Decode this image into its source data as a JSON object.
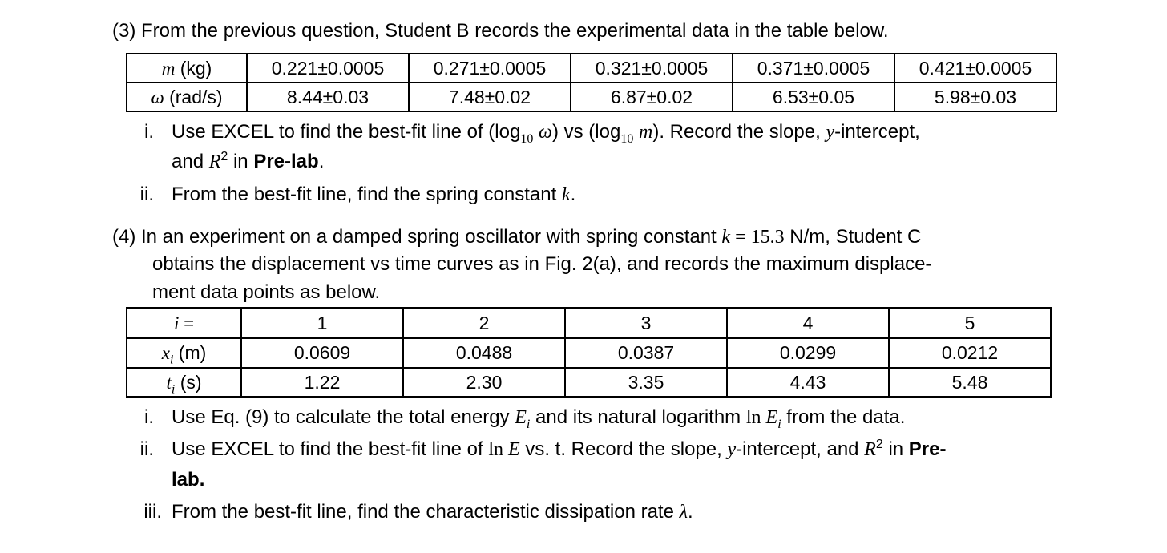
{
  "q3": {
    "heading": "(3) From the previous question, Student B records the experimental data in the table below.",
    "table": {
      "row1": {
        "sym": "m",
        "unit": " (kg)",
        "values": [
          "0.221±0.0005",
          "0.271±0.0005",
          "0.321±0.0005",
          "0.371±0.0005",
          "0.421±0.0005"
        ]
      },
      "row2": {
        "sym": "ω",
        "unit": " (rad/s)",
        "values": [
          "8.44±0.03",
          "7.48±0.02",
          "6.87±0.02",
          "6.53±0.05",
          "5.98±0.03"
        ]
      }
    },
    "items": [
      {
        "marker": "i.",
        "t1": "Use EXCEL to find the best-fit line of (log",
        "sub10": "10",
        "w": "ω",
        "t2": ") vs (log",
        "sub10b": "10",
        "m": "m",
        "t3": "). Record the slope, ",
        "y": "y",
        "t4": "-intercept,",
        "line2a": "and ",
        "R": "R",
        "sup2": "2",
        "line2b": " in ",
        "prelab": "Pre-lab",
        "line2c": "."
      },
      {
        "marker": "ii.",
        "t1": "From the best-fit line, find the spring constant ",
        "k": "k",
        "t2": "."
      }
    ]
  },
  "q4": {
    "line1a": "(4) In an experiment on a damped spring oscillator with spring constant ",
    "k": "k",
    "eq": " = 15.3",
    "line1b": " N/m, Student C",
    "line2": "obtains the displacement vs time curves as in Fig. 2(a), and records the maximum displace-",
    "line3": "ment data points as below.",
    "table": {
      "row1": {
        "sym": "i",
        "unit": " =",
        "values": [
          "1",
          "2",
          "3",
          "4",
          "5"
        ]
      },
      "row2": {
        "sym": "x",
        "sub": "i",
        "unit": " (m)",
        "values": [
          "0.0609",
          "0.0488",
          "0.0387",
          "0.0299",
          "0.0212"
        ]
      },
      "row3": {
        "sym": "t",
        "sub": "i",
        "unit": " (s)",
        "values": [
          "1.22",
          "2.30",
          "3.35",
          "4.43",
          "5.48"
        ]
      }
    },
    "items": [
      {
        "marker": "i.",
        "t1": "Use Eq. (9) to calculate the total energy ",
        "E": "E",
        "sub": "i",
        "t2": " and its natural logarithm ",
        "ln": "ln ",
        "E2": "E",
        "sub2": "i",
        "t3": " from the data."
      },
      {
        "marker": "ii.",
        "t1": "Use EXCEL to find the best-fit line of ",
        "ln": "ln ",
        "E": "E",
        "t2": " vs. t. Record the slope, ",
        "y": "y",
        "t3": "-intercept, and ",
        "R": "R",
        "sup2": "2",
        "t4": " in ",
        "pre": "Pre-",
        "line2": "lab",
        "line2b": "."
      },
      {
        "marker": "iii.",
        "t1": "From the best-fit line, find the characteristic dissipation rate ",
        "lambda": "λ",
        "t2": "."
      }
    ]
  }
}
